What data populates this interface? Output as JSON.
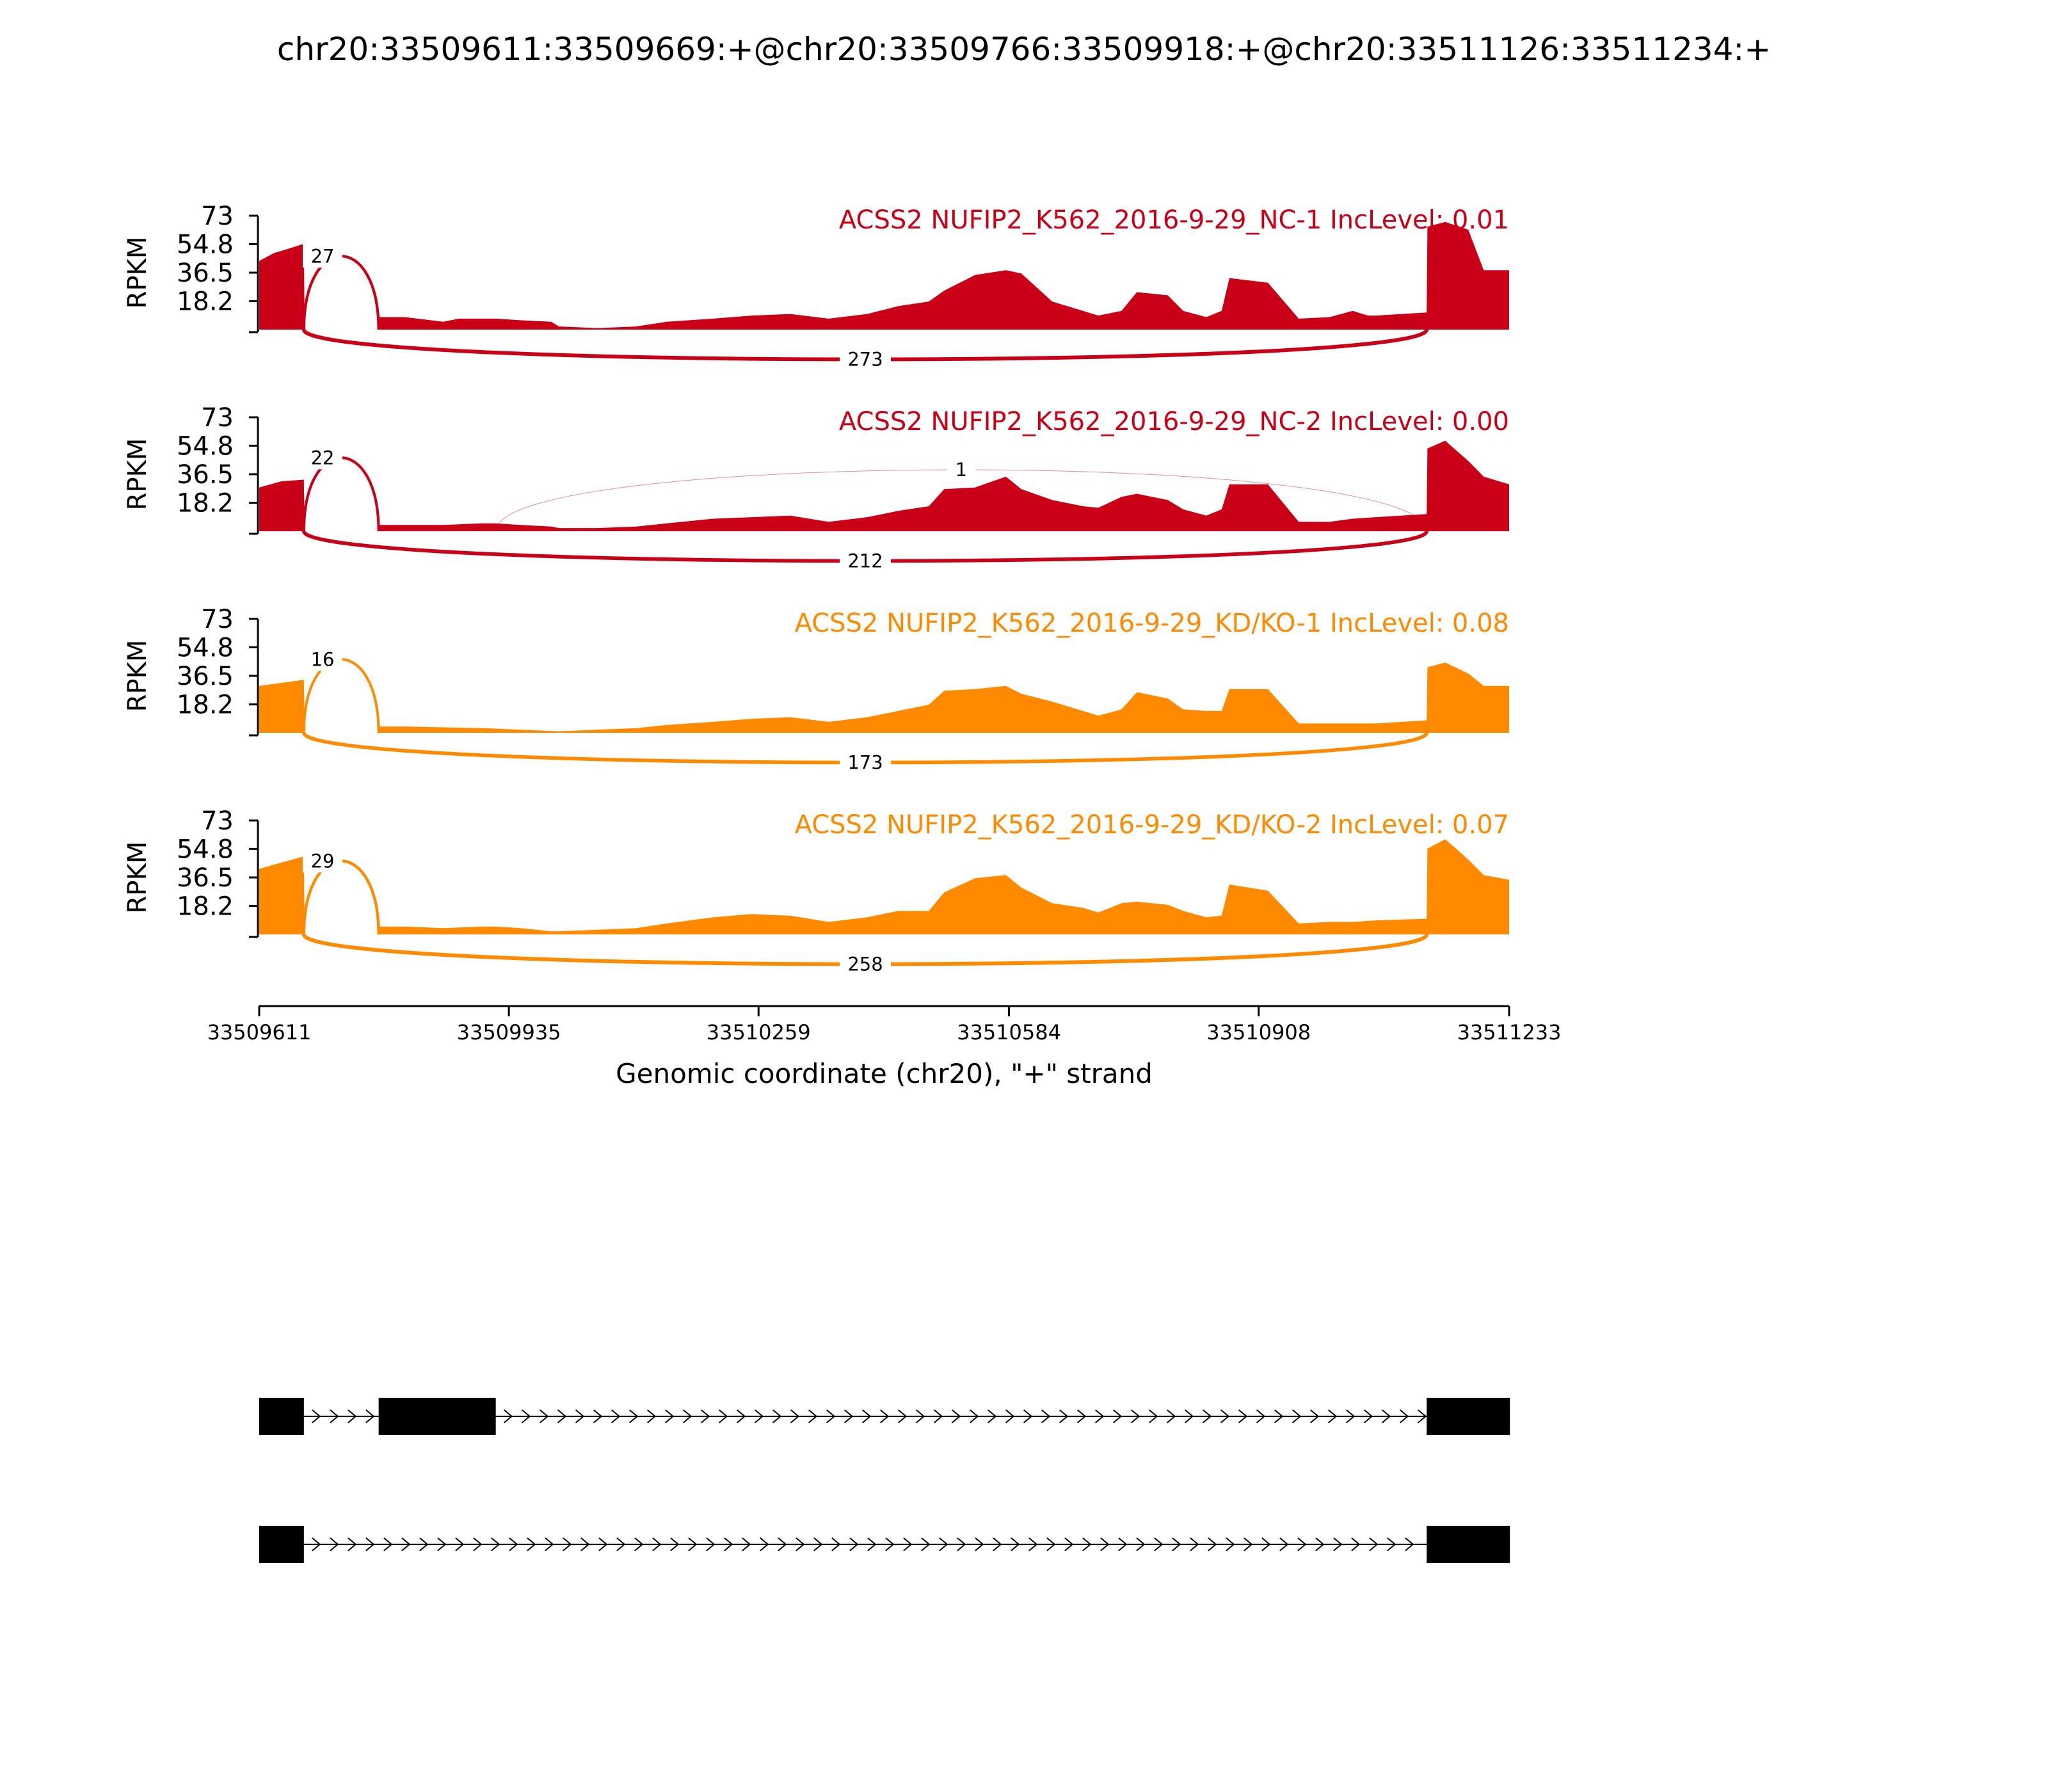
{
  "title": "chr20:33509611:33509669:+@chr20:33509766:33509918:+@chr20:33511126:33511234:+",
  "colors": {
    "nc": "#c90016",
    "kd": "#ff8a00",
    "axis": "#000000",
    "gene": "#000000"
  },
  "chart_data": {
    "type": "area",
    "xlabel": "Genomic coordinate (chr20), \"+\" strand",
    "ylabel": "RPKM",
    "xlim": [
      33509611,
      33511233
    ],
    "xticks": [
      "33509611",
      "33509935",
      "33510259",
      "33510584",
      "33510908",
      "33511233"
    ],
    "ylim": [
      0,
      73
    ],
    "yticks": [
      "73",
      "54.8",
      "36.5",
      "18.2"
    ],
    "grid": false,
    "tracks": [
      {
        "label": "ACSS2 NUFIP2_K562_2016-9-29_NC-1 IncLevel: 0.01",
        "group": "nc",
        "coverage": [
          [
            33509611,
            44
          ],
          [
            33509630,
            49
          ],
          [
            33509650,
            52
          ],
          [
            33509669,
            55
          ],
          [
            33509670,
            0
          ],
          [
            33509766,
            0
          ],
          [
            33509767,
            8
          ],
          [
            33509800,
            8
          ],
          [
            33509850,
            5
          ],
          [
            33509870,
            7
          ],
          [
            33509918,
            7
          ],
          [
            33509950,
            6
          ],
          [
            33509990,
            5
          ],
          [
            33510000,
            2
          ],
          [
            33510050,
            1
          ],
          [
            33510100,
            2
          ],
          [
            33510140,
            5
          ],
          [
            33510200,
            7
          ],
          [
            33510250,
            9
          ],
          [
            33510300,
            10
          ],
          [
            33510350,
            7
          ],
          [
            33510400,
            10
          ],
          [
            33510440,
            15
          ],
          [
            33510480,
            18
          ],
          [
            33510500,
            25
          ],
          [
            33510540,
            35
          ],
          [
            33510580,
            38
          ],
          [
            33510600,
            36
          ],
          [
            33510640,
            18
          ],
          [
            33510680,
            12
          ],
          [
            33510700,
            9
          ],
          [
            33510730,
            12
          ],
          [
            33510750,
            24
          ],
          [
            33510790,
            22
          ],
          [
            33510810,
            12
          ],
          [
            33510840,
            8
          ],
          [
            33510860,
            12
          ],
          [
            33510870,
            33
          ],
          [
            33510920,
            30
          ],
          [
            33510960,
            7
          ],
          [
            33511000,
            8
          ],
          [
            33511030,
            12
          ],
          [
            33511050,
            9
          ],
          [
            33511060,
            9
          ],
          [
            33511126,
            11
          ],
          [
            33511127,
            66
          ],
          [
            33511150,
            69
          ],
          [
            33511180,
            64
          ],
          [
            33511200,
            38
          ],
          [
            33511233,
            38
          ]
        ],
        "junctions": [
          {
            "from": 33509669,
            "to": 33509766,
            "reads": "27",
            "side": "top"
          },
          {
            "from": 33509669,
            "to": 33511126,
            "reads": "273",
            "side": "bottom"
          }
        ]
      },
      {
        "label": "ACSS2 NUFIP2_K562_2016-9-29_NC-2 IncLevel: 0.00",
        "group": "nc",
        "coverage": [
          [
            33509611,
            28
          ],
          [
            33509640,
            32
          ],
          [
            33509669,
            33
          ],
          [
            33509670,
            0
          ],
          [
            33509766,
            0
          ],
          [
            33509767,
            4
          ],
          [
            33509800,
            4
          ],
          [
            33509850,
            4
          ],
          [
            33509900,
            5
          ],
          [
            33509918,
            5
          ],
          [
            33509950,
            4
          ],
          [
            33509990,
            3
          ],
          [
            33510000,
            2
          ],
          [
            33510050,
            2
          ],
          [
            33510100,
            3
          ],
          [
            33510140,
            5
          ],
          [
            33510200,
            8
          ],
          [
            33510250,
            9
          ],
          [
            33510300,
            10
          ],
          [
            33510350,
            6
          ],
          [
            33510400,
            9
          ],
          [
            33510440,
            13
          ],
          [
            33510480,
            16
          ],
          [
            33510500,
            27
          ],
          [
            33510540,
            28
          ],
          [
            33510580,
            35
          ],
          [
            33510600,
            27
          ],
          [
            33510640,
            20
          ],
          [
            33510680,
            16
          ],
          [
            33510700,
            15
          ],
          [
            33510730,
            22
          ],
          [
            33510750,
            24
          ],
          [
            33510790,
            20
          ],
          [
            33510810,
            14
          ],
          [
            33510840,
            10
          ],
          [
            33510860,
            14
          ],
          [
            33510870,
            30
          ],
          [
            33510920,
            30
          ],
          [
            33510960,
            6
          ],
          [
            33511000,
            6
          ],
          [
            33511030,
            8
          ],
          [
            33511060,
            9
          ],
          [
            33511126,
            11
          ],
          [
            33511127,
            53
          ],
          [
            33511150,
            58
          ],
          [
            33511180,
            45
          ],
          [
            33511200,
            35
          ],
          [
            33511233,
            30
          ]
        ],
        "junctions": [
          {
            "from": 33509669,
            "to": 33509766,
            "reads": "22",
            "side": "top"
          },
          {
            "from": 33509918,
            "to": 33511126,
            "reads": "1",
            "side": "top"
          },
          {
            "from": 33509669,
            "to": 33511126,
            "reads": "212",
            "side": "bottom"
          }
        ]
      },
      {
        "label": "ACSS2 NUFIP2_K562_2016-9-29_KD/KO-1 IncLevel: 0.08",
        "group": "kd",
        "coverage": [
          [
            33509611,
            30
          ],
          [
            33509640,
            32
          ],
          [
            33509669,
            34
          ],
          [
            33509670,
            0
          ],
          [
            33509766,
            0
          ],
          [
            33509767,
            4
          ],
          [
            33509800,
            4
          ],
          [
            33509900,
            3
          ],
          [
            33509950,
            2
          ],
          [
            33510000,
            1
          ],
          [
            33510050,
            2
          ],
          [
            33510100,
            3
          ],
          [
            33510140,
            5
          ],
          [
            33510200,
            7
          ],
          [
            33510250,
            9
          ],
          [
            33510300,
            10
          ],
          [
            33510350,
            7
          ],
          [
            33510400,
            10
          ],
          [
            33510440,
            14
          ],
          [
            33510480,
            18
          ],
          [
            33510500,
            27
          ],
          [
            33510540,
            28
          ],
          [
            33510580,
            30
          ],
          [
            33510600,
            25
          ],
          [
            33510640,
            20
          ],
          [
            33510680,
            14
          ],
          [
            33510700,
            11
          ],
          [
            33510730,
            15
          ],
          [
            33510750,
            26
          ],
          [
            33510790,
            22
          ],
          [
            33510810,
            15
          ],
          [
            33510840,
            14
          ],
          [
            33510860,
            14
          ],
          [
            33510870,
            28
          ],
          [
            33510920,
            28
          ],
          [
            33510960,
            6
          ],
          [
            33511000,
            6
          ],
          [
            33511030,
            6
          ],
          [
            33511060,
            6
          ],
          [
            33511126,
            8
          ],
          [
            33511127,
            42
          ],
          [
            33511150,
            45
          ],
          [
            33511180,
            38
          ],
          [
            33511200,
            30
          ],
          [
            33511233,
            30
          ]
        ],
        "junctions": [
          {
            "from": 33509669,
            "to": 33509766,
            "reads": "16",
            "side": "top"
          },
          {
            "from": 33509669,
            "to": 33511126,
            "reads": "173",
            "side": "bottom"
          }
        ]
      },
      {
        "label": "ACSS2 NUFIP2_K562_2016-9-29_KD/KO-2 IncLevel: 0.07",
        "group": "kd",
        "coverage": [
          [
            33509611,
            42
          ],
          [
            33509640,
            46
          ],
          [
            33509669,
            50
          ],
          [
            33509670,
            0
          ],
          [
            33509766,
            0
          ],
          [
            33509767,
            5
          ],
          [
            33509800,
            5
          ],
          [
            33509850,
            4
          ],
          [
            33509900,
            5
          ],
          [
            33509918,
            5
          ],
          [
            33509950,
            4
          ],
          [
            33509990,
            2
          ],
          [
            33510000,
            2
          ],
          [
            33510050,
            3
          ],
          [
            33510100,
            4
          ],
          [
            33510140,
            7
          ],
          [
            33510200,
            11
          ],
          [
            33510250,
            13
          ],
          [
            33510300,
            12
          ],
          [
            33510350,
            8
          ],
          [
            33510400,
            11
          ],
          [
            33510440,
            15
          ],
          [
            33510480,
            15
          ],
          [
            33510500,
            27
          ],
          [
            33510540,
            36
          ],
          [
            33510580,
            38
          ],
          [
            33510600,
            30
          ],
          [
            33510640,
            20
          ],
          [
            33510680,
            17
          ],
          [
            33510700,
            14
          ],
          [
            33510730,
            20
          ],
          [
            33510750,
            21
          ],
          [
            33510790,
            19
          ],
          [
            33510810,
            15
          ],
          [
            33510840,
            11
          ],
          [
            33510860,
            12
          ],
          [
            33510870,
            32
          ],
          [
            33510920,
            28
          ],
          [
            33510960,
            7
          ],
          [
            33511000,
            8
          ],
          [
            33511030,
            8
          ],
          [
            33511060,
            9
          ],
          [
            33511126,
            10
          ],
          [
            33511127,
            55
          ],
          [
            33511150,
            61
          ],
          [
            33511180,
            48
          ],
          [
            33511200,
            38
          ],
          [
            33511233,
            35
          ]
        ],
        "junctions": [
          {
            "from": 33509669,
            "to": 33509766,
            "reads": "29",
            "side": "top"
          },
          {
            "from": 33509669,
            "to": 33511126,
            "reads": "258",
            "side": "bottom"
          }
        ]
      }
    ],
    "isoforms": [
      [
        [
          33509611,
          33509669
        ],
        [
          33509766,
          33509918
        ],
        [
          33511126,
          33511234
        ]
      ],
      [
        [
          33509611,
          33509669
        ],
        [
          33511126,
          33511234
        ]
      ]
    ]
  }
}
